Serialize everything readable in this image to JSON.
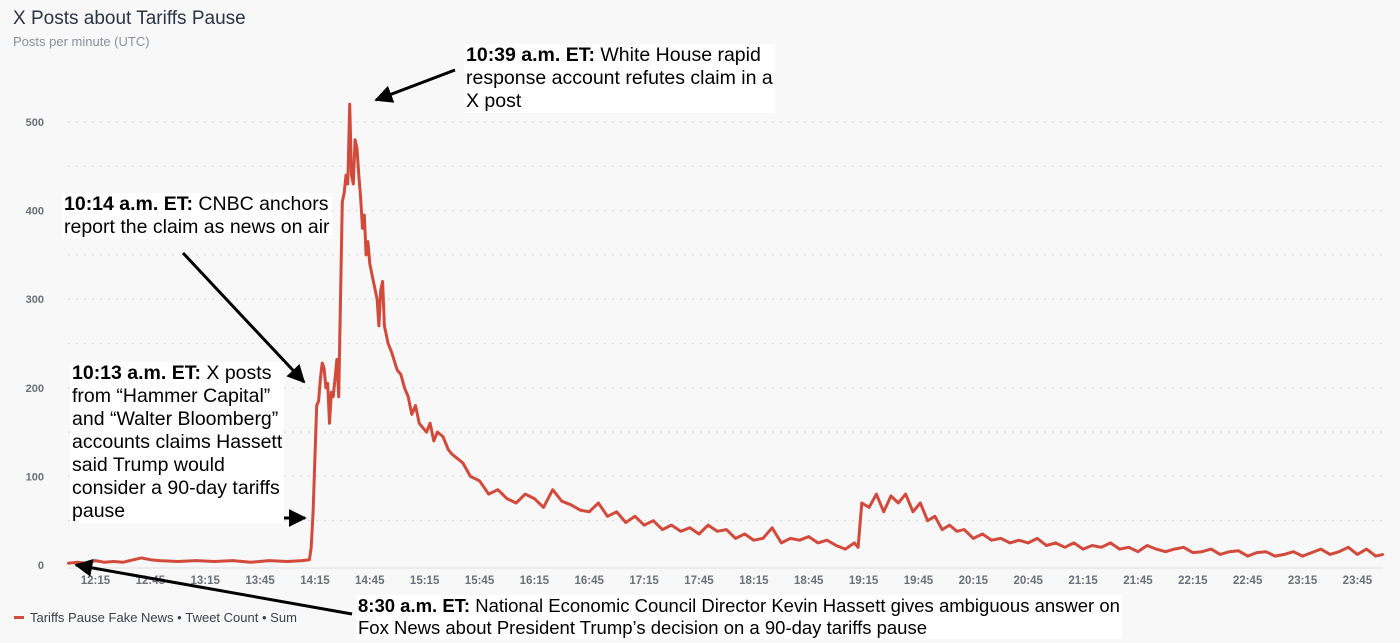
{
  "header": {
    "title": "X Posts about Tariffs Pause",
    "subtitle": "Posts per minute (UTC)"
  },
  "legend": {
    "series_label": "Tariffs Pause Fake News",
    "metric_label": "Tweet Count",
    "agg_label": "Sum",
    "separator": "•",
    "color": "#d14a3c"
  },
  "annotations": [
    {
      "id": "a1039",
      "time_label": "10:39 a.m. ET:",
      "text": "White House rapid response account refutes claim in a X post",
      "lines": [
        "White House rapid",
        "response account refutes claim in a",
        "X post"
      ]
    },
    {
      "id": "a1014",
      "time_label": "10:14 a.m. ET:",
      "text": "CNBC anchors report the claim as news on air",
      "lines": [
        "CNBC anchors",
        "report the claim as news on air"
      ]
    },
    {
      "id": "a1013",
      "time_label": "10:13 a.m. ET:",
      "text": "X posts from “Hammer Capital” and “Walter Bloomberg” accounts claims Hassett said Trump would consider a 90-day tariffs pause",
      "lines": [
        "X posts",
        "from “Hammer Capital”",
        "and “Walter Bloomberg”",
        "accounts claims Hassett",
        "said Trump would",
        "consider a 90-day tariffs",
        "pause"
      ]
    },
    {
      "id": "a0830",
      "time_label": "8:30 a.m. ET:",
      "text": "National Economic Council Director Kevin Hassett gives ambiguous answer on Fox News about President Trump’s decision on a 90-day tariffs pause",
      "lines": [
        "National Economic Council Director Kevin Hassett gives ambiguous answer on",
        "Fox News about President Trump’s decision on a 90-day tariffs pause"
      ]
    }
  ],
  "chart_data": {
    "type": "line",
    "title": "X Posts about Tariffs Pause",
    "subtitle": "Posts per minute (UTC)",
    "xlabel": "",
    "ylabel": "Posts per minute",
    "ylim": [
      0,
      520
    ],
    "yticks": [
      0,
      100,
      200,
      300,
      400,
      500
    ],
    "grid_step": 50,
    "grid": true,
    "xlim_minutes": [
      720,
      1439
    ],
    "xtick_labels": [
      "12:15",
      "12:45",
      "13:15",
      "13:45",
      "14:15",
      "14:45",
      "15:15",
      "15:45",
      "16:15",
      "16:45",
      "17:15",
      "17:45",
      "18:15",
      "18:45",
      "19:15",
      "19:45",
      "20:15",
      "20:45",
      "21:15",
      "21:45",
      "22:15",
      "22:45",
      "23:15",
      "23:45"
    ],
    "legend_position": "bottom-left",
    "series": [
      {
        "name": "Tariffs Pause Fake News • Tweet Count • Sum",
        "color": "#d14a3c",
        "points": [
          [
            "12:00",
            2
          ],
          [
            "12:05",
            3
          ],
          [
            "12:10",
            2
          ],
          [
            "12:15",
            5
          ],
          [
            "12:20",
            3
          ],
          [
            "12:25",
            4
          ],
          [
            "12:30",
            3
          ],
          [
            "12:40",
            8
          ],
          [
            "12:45",
            6
          ],
          [
            "12:50",
            5
          ],
          [
            "13:00",
            4
          ],
          [
            "13:10",
            5
          ],
          [
            "13:20",
            4
          ],
          [
            "13:30",
            5
          ],
          [
            "13:40",
            3
          ],
          [
            "13:50",
            5
          ],
          [
            "14:00",
            4
          ],
          [
            "14:08",
            5
          ],
          [
            "14:12",
            6
          ],
          [
            "14:13",
            20
          ],
          [
            "14:14",
            60
          ],
          [
            "14:15",
            120
          ],
          [
            "14:16",
            180
          ],
          [
            "14:17",
            185
          ],
          [
            "14:18",
            210
          ],
          [
            "14:19",
            228
          ],
          [
            "14:20",
            222
          ],
          [
            "14:21",
            200
          ],
          [
            "14:22",
            205
          ],
          [
            "14:23",
            160
          ],
          [
            "14:24",
            195
          ],
          [
            "14:25",
            190
          ],
          [
            "14:26",
            210
          ],
          [
            "14:27",
            232
          ],
          [
            "14:28",
            190
          ],
          [
            "14:29",
            300
          ],
          [
            "14:30",
            410
          ],
          [
            "14:31",
            420
          ],
          [
            "14:32",
            440
          ],
          [
            "14:33",
            430
          ],
          [
            "14:34",
            520
          ],
          [
            "14:35",
            440
          ],
          [
            "14:36",
            430
          ],
          [
            "14:37",
            480
          ],
          [
            "14:38",
            470
          ],
          [
            "14:39",
            440
          ],
          [
            "14:40",
            415
          ],
          [
            "14:41",
            380
          ],
          [
            "14:42",
            395
          ],
          [
            "14:43",
            350
          ],
          [
            "14:44",
            365
          ],
          [
            "14:45",
            340
          ],
          [
            "14:47",
            320
          ],
          [
            "14:49",
            300
          ],
          [
            "14:50",
            270
          ],
          [
            "14:51",
            310
          ],
          [
            "14:52",
            320
          ],
          [
            "14:53",
            270
          ],
          [
            "14:55",
            250
          ],
          [
            "14:57",
            240
          ],
          [
            "15:00",
            220
          ],
          [
            "15:02",
            215
          ],
          [
            "15:04",
            200
          ],
          [
            "15:06",
            190
          ],
          [
            "15:08",
            170
          ],
          [
            "15:10",
            180
          ],
          [
            "15:12",
            160
          ],
          [
            "15:14",
            155
          ],
          [
            "15:16",
            150
          ],
          [
            "15:18",
            160
          ],
          [
            "15:20",
            140
          ],
          [
            "15:22",
            150
          ],
          [
            "15:25",
            145
          ],
          [
            "15:28",
            130
          ],
          [
            "15:30",
            125
          ],
          [
            "15:33",
            120
          ],
          [
            "15:36",
            115
          ],
          [
            "15:40",
            100
          ],
          [
            "15:45",
            95
          ],
          [
            "15:50",
            80
          ],
          [
            "15:55",
            85
          ],
          [
            "16:00",
            75
          ],
          [
            "16:05",
            70
          ],
          [
            "16:10",
            80
          ],
          [
            "16:15",
            75
          ],
          [
            "16:20",
            65
          ],
          [
            "16:25",
            85
          ],
          [
            "16:30",
            72
          ],
          [
            "16:35",
            68
          ],
          [
            "16:40",
            62
          ],
          [
            "16:45",
            60
          ],
          [
            "16:50",
            70
          ],
          [
            "16:55",
            55
          ],
          [
            "17:00",
            60
          ],
          [
            "17:05",
            48
          ],
          [
            "17:10",
            55
          ],
          [
            "17:15",
            45
          ],
          [
            "17:20",
            50
          ],
          [
            "17:25",
            40
          ],
          [
            "17:30",
            45
          ],
          [
            "17:35",
            38
          ],
          [
            "17:40",
            42
          ],
          [
            "17:45",
            35
          ],
          [
            "17:50",
            45
          ],
          [
            "17:55",
            38
          ],
          [
            "18:00",
            40
          ],
          [
            "18:05",
            30
          ],
          [
            "18:10",
            35
          ],
          [
            "18:15",
            28
          ],
          [
            "18:20",
            30
          ],
          [
            "18:25",
            42
          ],
          [
            "18:30",
            25
          ],
          [
            "18:35",
            30
          ],
          [
            "18:40",
            28
          ],
          [
            "18:45",
            32
          ],
          [
            "18:50",
            25
          ],
          [
            "18:55",
            28
          ],
          [
            "19:00",
            22
          ],
          [
            "19:05",
            18
          ],
          [
            "19:10",
            25
          ],
          [
            "19:12",
            20
          ],
          [
            "19:14",
            70
          ],
          [
            "19:18",
            65
          ],
          [
            "19:22",
            80
          ],
          [
            "19:26",
            60
          ],
          [
            "19:30",
            78
          ],
          [
            "19:34",
            70
          ],
          [
            "19:38",
            80
          ],
          [
            "19:42",
            60
          ],
          [
            "19:46",
            70
          ],
          [
            "19:50",
            50
          ],
          [
            "19:54",
            55
          ],
          [
            "19:58",
            40
          ],
          [
            "20:02",
            45
          ],
          [
            "20:06",
            38
          ],
          [
            "20:10",
            40
          ],
          [
            "20:15",
            30
          ],
          [
            "20:20",
            35
          ],
          [
            "20:25",
            28
          ],
          [
            "20:30",
            30
          ],
          [
            "20:35",
            25
          ],
          [
            "20:40",
            28
          ],
          [
            "20:45",
            25
          ],
          [
            "20:50",
            30
          ],
          [
            "20:55",
            22
          ],
          [
            "21:00",
            25
          ],
          [
            "21:05",
            20
          ],
          [
            "21:10",
            25
          ],
          [
            "21:15",
            18
          ],
          [
            "21:20",
            22
          ],
          [
            "21:25",
            20
          ],
          [
            "21:30",
            25
          ],
          [
            "21:35",
            18
          ],
          [
            "21:40",
            20
          ],
          [
            "21:45",
            15
          ],
          [
            "21:50",
            22
          ],
          [
            "21:55",
            18
          ],
          [
            "22:00",
            15
          ],
          [
            "22:05",
            18
          ],
          [
            "22:10",
            20
          ],
          [
            "22:15",
            14
          ],
          [
            "22:20",
            15
          ],
          [
            "22:25",
            18
          ],
          [
            "22:30",
            12
          ],
          [
            "22:35",
            15
          ],
          [
            "22:40",
            16
          ],
          [
            "22:45",
            10
          ],
          [
            "22:50",
            14
          ],
          [
            "22:55",
            15
          ],
          [
            "23:00",
            10
          ],
          [
            "23:05",
            12
          ],
          [
            "23:10",
            15
          ],
          [
            "23:15",
            10
          ],
          [
            "23:20",
            14
          ],
          [
            "23:25",
            18
          ],
          [
            "23:30",
            12
          ],
          [
            "23:35",
            15
          ],
          [
            "23:40",
            20
          ],
          [
            "23:45",
            12
          ],
          [
            "23:50",
            18
          ],
          [
            "23:55",
            10
          ],
          [
            "23:59",
            12
          ]
        ]
      }
    ]
  }
}
